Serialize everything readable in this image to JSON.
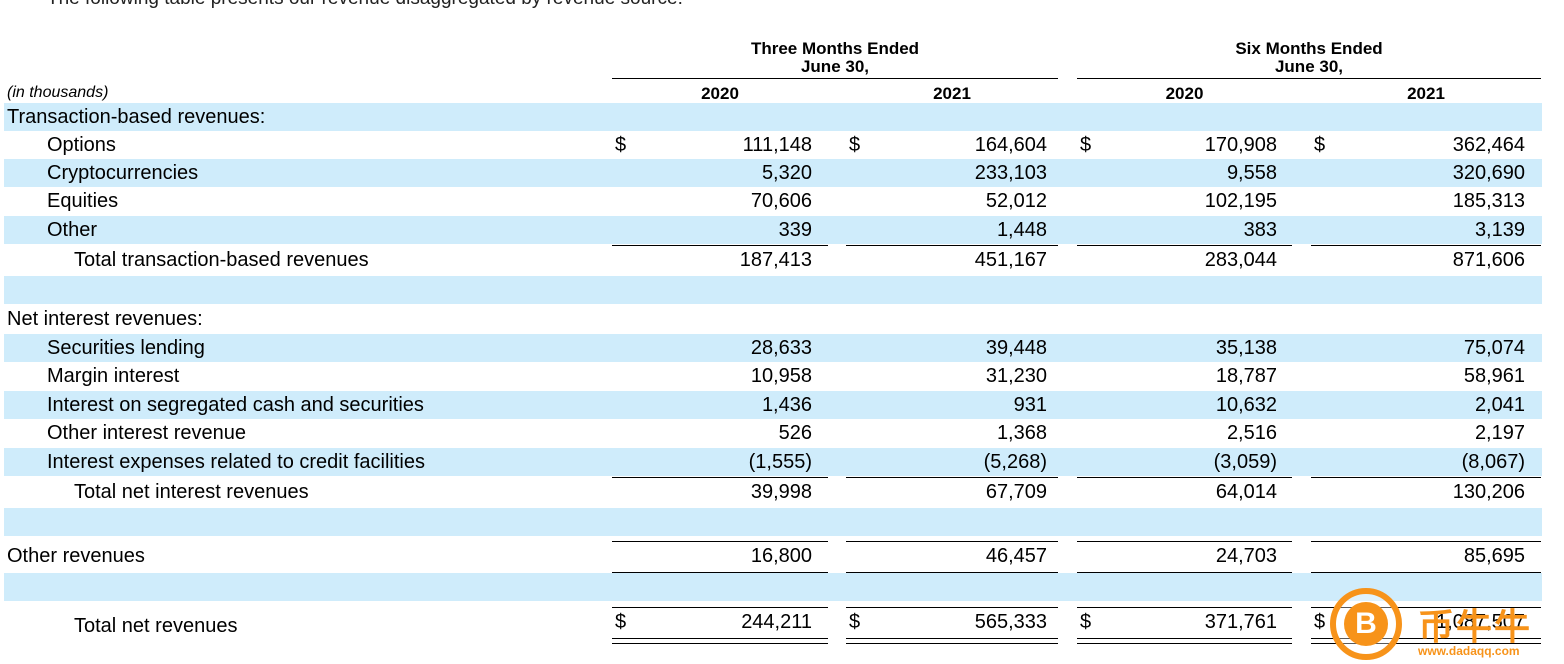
{
  "intro_text": "The following table presents our revenue disaggregated by revenue source:",
  "header": {
    "three_months": [
      "Three Months Ended",
      "June 30,"
    ],
    "six_months": [
      "Six Months Ended",
      "June 30,"
    ],
    "units": "(in thousands)",
    "years": [
      "2020",
      "2021",
      "2020",
      "2021"
    ]
  },
  "rows": [
    {
      "label": "Transaction-based revenues:",
      "indent": 0,
      "shade": true,
      "values": [],
      "dollar": false
    },
    {
      "label": "Options",
      "indent": 1,
      "shade": false,
      "values": [
        "111,148",
        "164,604",
        "170,908",
        "362,464"
      ],
      "dollar": true
    },
    {
      "label": "Cryptocurrencies",
      "indent": 1,
      "shade": true,
      "values": [
        "5,320",
        "233,103",
        "9,558",
        "320,690"
      ],
      "dollar": false
    },
    {
      "label": "Equities",
      "indent": 1,
      "shade": false,
      "values": [
        "70,606",
        "52,012",
        "102,195",
        "185,313"
      ],
      "dollar": false
    },
    {
      "label": "Other",
      "indent": 1,
      "shade": true,
      "values": [
        "339",
        "1,448",
        "383",
        "3,139"
      ],
      "dollar": false
    },
    {
      "label": "Total transaction-based revenues",
      "indent": 2,
      "shade": false,
      "values": [
        "187,413",
        "451,167",
        "283,044",
        "871,606"
      ],
      "dollar": false
    },
    {
      "label": "",
      "indent": 0,
      "shade": true,
      "values": [],
      "dollar": false
    },
    {
      "label": "Net interest revenues:",
      "indent": 0,
      "shade": false,
      "values": [],
      "dollar": false
    },
    {
      "label": "Securities lending",
      "indent": 1,
      "shade": true,
      "values": [
        "28,633",
        "39,448",
        "35,138",
        "75,074"
      ],
      "dollar": false
    },
    {
      "label": "Margin interest",
      "indent": 1,
      "shade": false,
      "values": [
        "10,958",
        "31,230",
        "18,787",
        "58,961"
      ],
      "dollar": false
    },
    {
      "label": "Interest on segregated cash and securities",
      "indent": 1,
      "shade": true,
      "values": [
        "1,436",
        "931",
        "10,632",
        "2,041"
      ],
      "dollar": false
    },
    {
      "label": "Other interest revenue",
      "indent": 1,
      "shade": false,
      "values": [
        "526",
        "1,368",
        "2,516",
        "2,197"
      ],
      "dollar": false
    },
    {
      "label": "Interest expenses related to credit facilities",
      "indent": 1,
      "shade": true,
      "values": [
        "(1,555)",
        "(5,268)",
        "(3,059)",
        "(8,067)"
      ],
      "dollar": false
    },
    {
      "label": "Total net interest revenues",
      "indent": 2,
      "shade": false,
      "values": [
        "39,998",
        "67,709",
        "64,014",
        "130,206"
      ],
      "dollar": false
    },
    {
      "label": "",
      "indent": 0,
      "shade": true,
      "values": [],
      "dollar": false
    },
    {
      "label": "Other revenues",
      "indent": 0,
      "shade": false,
      "values": [
        "16,800",
        "46,457",
        "24,703",
        "85,695"
      ],
      "dollar": false
    },
    {
      "label": "",
      "indent": 0,
      "shade": true,
      "values": [],
      "dollar": false
    },
    {
      "label": "Total net revenues",
      "indent": 2,
      "shade": false,
      "values": [
        "244,211",
        "565,333",
        "371,761",
        "1,087,507"
      ],
      "dollar": true
    }
  ],
  "dollar_sign": "$",
  "watermark": {
    "brand": "币牛牛",
    "url": "www.dadaqq.com",
    "logo_glyph": "B"
  }
}
